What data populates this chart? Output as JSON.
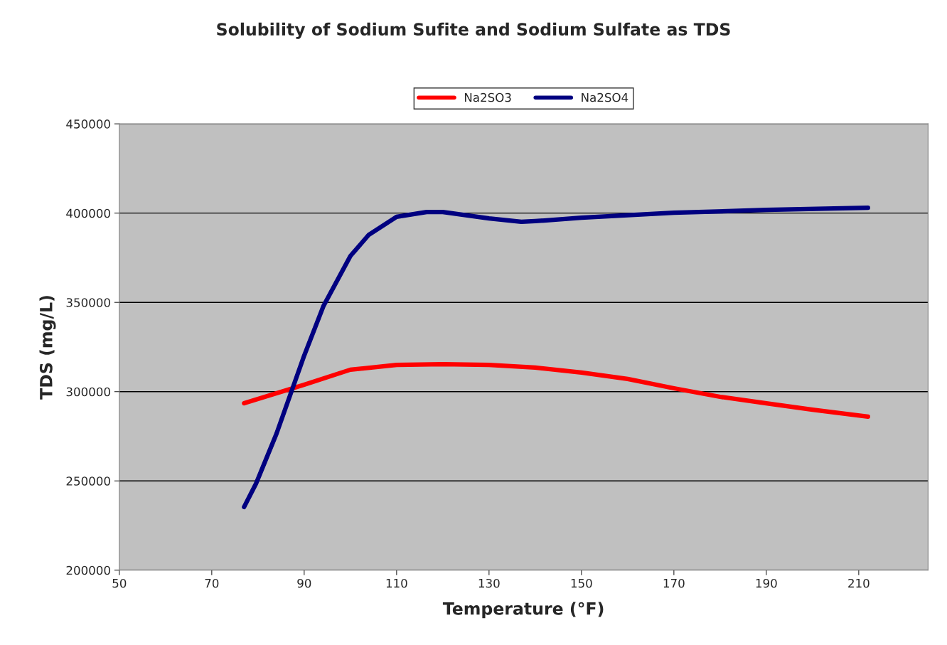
{
  "chart_data": {
    "type": "line",
    "title": "Solubility of Sodium Sufite and Sodium Sulfate as TDS",
    "xlabel": "Temperature (°F)",
    "ylabel": "TDS (mg/L)",
    "xlim": [
      50,
      225
    ],
    "xticks": [
      50,
      70,
      90,
      110,
      130,
      150,
      170,
      190,
      210
    ],
    "ylim": [
      200000,
      450000
    ],
    "yticks": [
      200000,
      250000,
      300000,
      350000,
      400000,
      450000
    ],
    "grid": "y",
    "legend": "top",
    "marker": "none",
    "line_style": "solid",
    "series": [
      {
        "name": "Na2SO3",
        "color": "#ff0000",
        "x": [
          77,
          90,
          100,
          110,
          120,
          130,
          140,
          150,
          160,
          170,
          180,
          190,
          200,
          212
        ],
        "values": [
          293500,
          303900,
          312300,
          315000,
          315400,
          315000,
          313500,
          310700,
          307100,
          301900,
          297100,
          293500,
          289900,
          286000
        ]
      },
      {
        "name": "Na2SO4",
        "color": "#000080",
        "x": [
          77,
          79.6,
          84,
          87,
          90,
          94.2,
          100,
          104,
          110,
          116.5,
          120,
          130,
          137,
          140,
          150,
          170,
          190,
          212
        ],
        "values": [
          235400,
          248600,
          276400,
          298300,
          320200,
          348100,
          376000,
          387900,
          397900,
          400600,
          400600,
          397000,
          395100,
          395500,
          397400,
          400200,
          401800,
          403000
        ]
      }
    ]
  }
}
